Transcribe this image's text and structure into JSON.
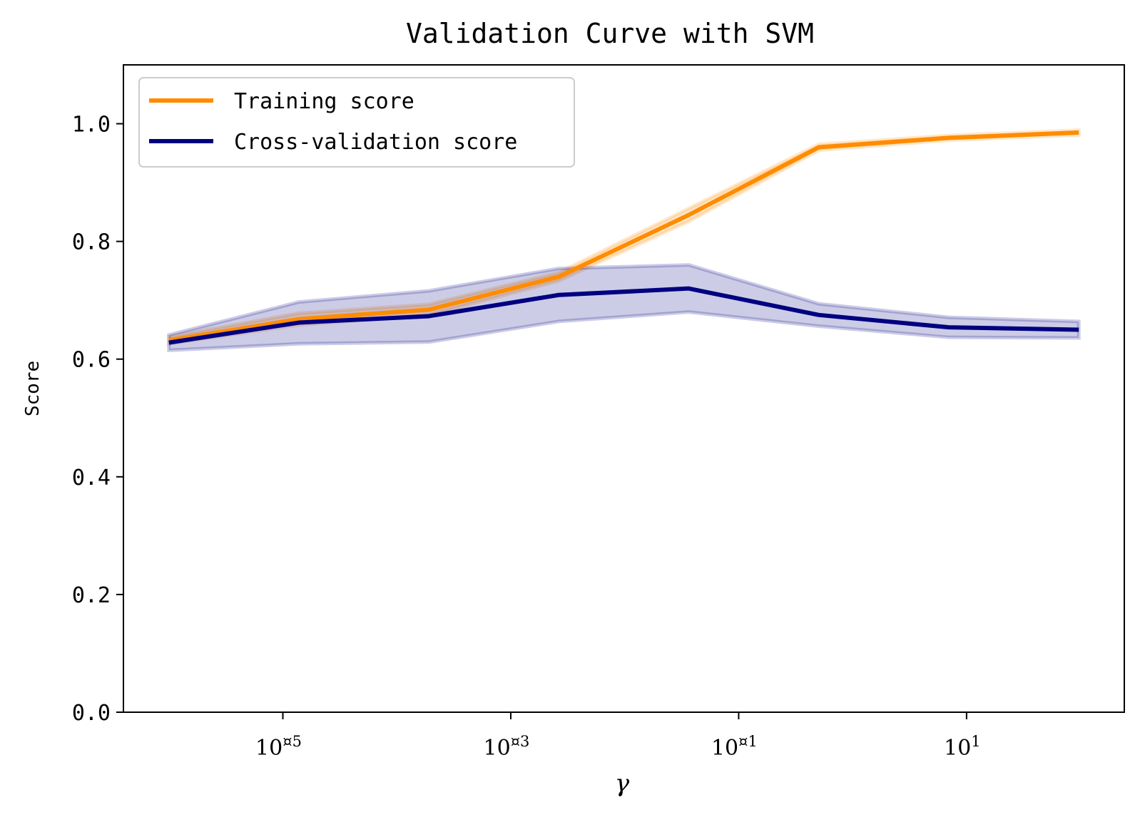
{
  "chart_data": {
    "type": "line",
    "title": "Validation Curve with SVM",
    "xlabel": "γ",
    "ylabel": "Score",
    "xscale": "log",
    "ylim": [
      0.0,
      1.1
    ],
    "yticks": [
      "0.0",
      "0.2",
      "0.4",
      "0.6",
      "0.8",
      "1.0"
    ],
    "xticks": [
      {
        "value": 1e-05,
        "base": "10",
        "exp": "¤5"
      },
      {
        "value": 0.001,
        "base": "10",
        "exp": "¤3"
      },
      {
        "value": 0.1,
        "base": "10",
        "exp": "¤1"
      },
      {
        "value": 10,
        "base": "10",
        "exp": "1"
      }
    ],
    "legend_position": "upper-left",
    "grid": false,
    "x": [
      1e-06,
      1.38e-05,
      0.000191,
      0.00264,
      0.0365,
      0.505,
      6.98,
      96.6
    ],
    "series": [
      {
        "name": "Training score",
        "color": "#ff8c00",
        "values": [
          0.632,
          0.668,
          0.684,
          0.74,
          0.845,
          0.96,
          0.976,
          0.985
        ],
        "lower": [
          0.626,
          0.658,
          0.675,
          0.733,
          0.834,
          0.955,
          0.972,
          0.981
        ],
        "upper": [
          0.638,
          0.678,
          0.693,
          0.747,
          0.856,
          0.965,
          0.98,
          0.989
        ]
      },
      {
        "name": "Cross-validation score",
        "color": "#000080",
        "values": [
          0.628,
          0.662,
          0.673,
          0.709,
          0.72,
          0.675,
          0.654,
          0.65
        ],
        "lower": [
          0.615,
          0.626,
          0.629,
          0.664,
          0.68,
          0.656,
          0.637,
          0.636
        ],
        "upper": [
          0.641,
          0.697,
          0.716,
          0.754,
          0.76,
          0.694,
          0.671,
          0.664
        ]
      }
    ]
  }
}
